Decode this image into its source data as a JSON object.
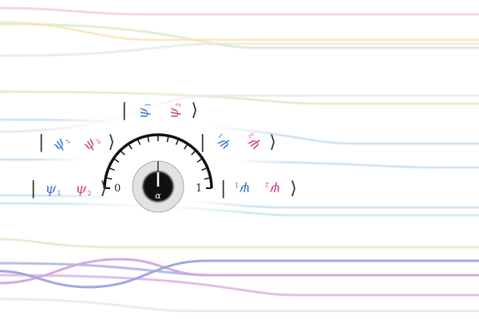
{
  "background": {
    "line_colors": [
      "#f2c9d3",
      "#f9e3b0",
      "#d5e9c4",
      "#c6dcef",
      "#d8d6ef",
      "#b9e8e6",
      "#9fa6e2",
      "#d5a9de",
      "#e6e6e6"
    ]
  },
  "dial": {
    "min_label": "0",
    "max_label": "1",
    "knob_label": "α",
    "value": 0.5,
    "ticks": 16
  },
  "kets": [
    {
      "symbol": "ψ",
      "sub1": "1",
      "sub2": "2",
      "rotation_deg": 0
    },
    {
      "symbol": "ψ",
      "sub1": "1",
      "sub2": "2",
      "rotation_deg": 45
    },
    {
      "symbol": "ψ",
      "sub1": "1",
      "sub2": "2",
      "rotation_deg": 90
    },
    {
      "symbol": "ψ",
      "sub1": "1",
      "sub2": "2",
      "rotation_deg": 135
    },
    {
      "symbol": "ψ",
      "sub1": "1",
      "sub2": "2",
      "rotation_deg": 180
    }
  ],
  "ket_delims": {
    "open": "|",
    "close": "⟩"
  },
  "colors": {
    "particle1": "#3d7cc9",
    "particle2": "#d0478d"
  }
}
